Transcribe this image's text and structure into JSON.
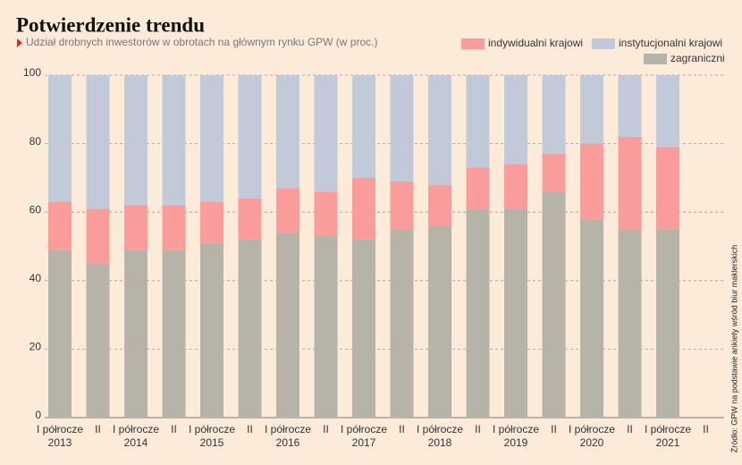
{
  "chart_data": {
    "type": "bar",
    "stacked": true,
    "title": "Potwierdzenie trendu",
    "subtitle": "Udział drobnych inwestorów w obrotach na głównym rynku GPW (w proc.)",
    "source": "Źródło: GPW na podstawie ankiety wśród biur maklerskich",
    "categories": [
      "I półrocze 2013",
      "II",
      "I półrocze 2014",
      "II",
      "I półrocze 2015",
      "II",
      "I półrocze 2016",
      "II",
      "I półrocze 2017",
      "II",
      "I półrocze 2018",
      "II",
      "I półrocze 2019",
      "II",
      "I półrocze 2020",
      "II",
      "I półrocze 2021",
      "II"
    ],
    "series": [
      {
        "name": "zagraniczni",
        "color": "#b6b3a8",
        "values": [
          49,
          45,
          49,
          49,
          51,
          52,
          54,
          53,
          52,
          55,
          56,
          61,
          61,
          66,
          58,
          55,
          55,
          null
        ]
      },
      {
        "name": "indywidualni krajowi",
        "color": "#f99c9b",
        "values": [
          14,
          16,
          13,
          13,
          12,
          12,
          13,
          13,
          18,
          14,
          12,
          12,
          13,
          11,
          22,
          27,
          24,
          null
        ]
      },
      {
        "name": "instytucjonalni krajowi",
        "color": "#c2c9d9",
        "values": [
          37,
          39,
          38,
          38,
          37,
          36,
          33,
          34,
          30,
          31,
          32,
          27,
          26,
          23,
          20,
          18,
          21,
          null
        ]
      }
    ],
    "ylim": [
      0,
      100
    ],
    "yticks": [
      0,
      20,
      40,
      60,
      80,
      100
    ],
    "grid": true
  }
}
